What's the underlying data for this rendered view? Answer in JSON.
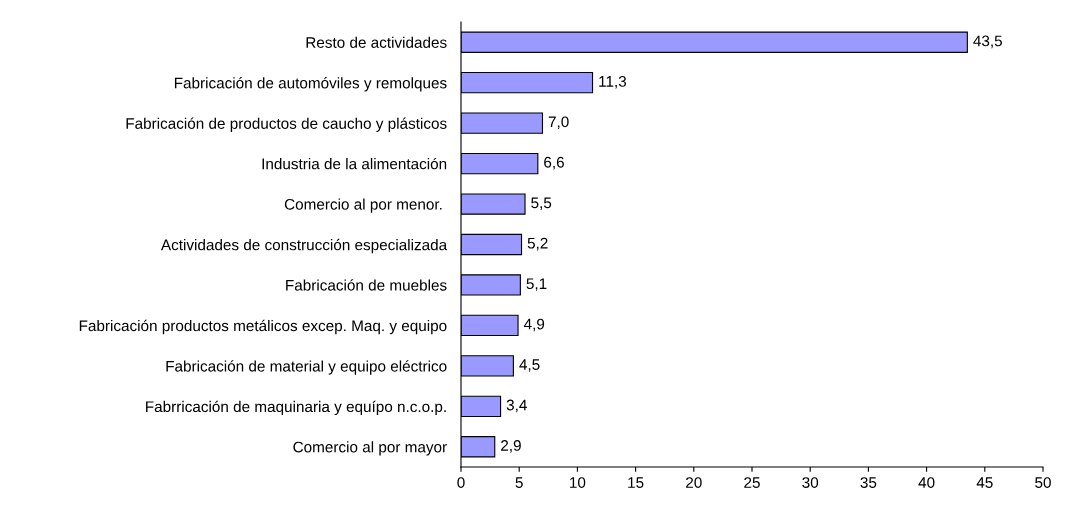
{
  "chart_data": {
    "type": "bar",
    "orientation": "horizontal",
    "categories": [
      "Resto de actividades",
      "Fabricación de automóviles y remolques",
      "Fabricación de productos de caucho y plásticos",
      "Industria de la alimentación",
      "Comercio al por menor. ",
      "Actividades de construcción especializada",
      "Fabricación de muebles",
      "Fabricación productos metálicos excep. Maq. y equipo",
      "Fabricación de material y equipo eléctrico",
      "Fabrricación de maquinaria y equípo n.c.o.p.",
      "Comercio al por mayor"
    ],
    "values": [
      43.5,
      11.3,
      7.0,
      6.6,
      5.5,
      5.2,
      5.1,
      4.9,
      4.5,
      3.4,
      2.9
    ],
    "value_labels": [
      "43,5",
      "11,3",
      "7,0",
      "6,6",
      "5,5",
      "5,2",
      "5,1",
      "4,9",
      "4,5",
      "3,4",
      "2,9"
    ],
    "color": "#9999ff",
    "xlim": [
      0,
      50
    ],
    "xticks": [
      0,
      5,
      10,
      15,
      20,
      25,
      30,
      35,
      40,
      45,
      50
    ],
    "grid": false
  }
}
